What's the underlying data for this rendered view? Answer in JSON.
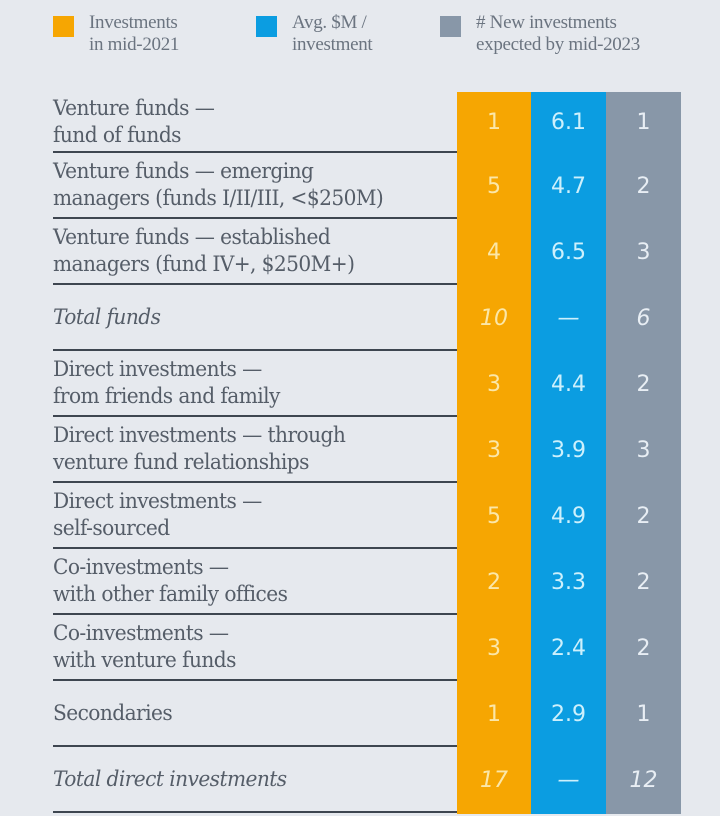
{
  "colors": {
    "investments_mid_2021": "#f6a602",
    "avg_m_per_investment": "#0b9de1",
    "new_investments_by_mid_2023": "#8897a8",
    "background": "#e6e9ee"
  },
  "legend": [
    {
      "label": "Investments\nin mid-2021",
      "color": "#f6a602"
    },
    {
      "label": "Avg. $M /\ninvestment",
      "color": "#0b9de1"
    },
    {
      "label": "# New investments\nexpected by mid-2023",
      "color": "#8897a8"
    }
  ],
  "rows": [
    {
      "label": "Venture funds —\nfund of funds",
      "total": false,
      "values": [
        "1",
        "6.1",
        "1"
      ]
    },
    {
      "label": "Venture funds — emerging\nmanagers (funds I/II/III, <$250M)",
      "total": false,
      "values": [
        "5",
        "4.7",
        "2"
      ]
    },
    {
      "label": "Venture funds — established\nmanagers (fund IV+, $250M+)",
      "total": false,
      "values": [
        "4",
        "6.5",
        "3"
      ]
    },
    {
      "label": "Total funds",
      "total": true,
      "values": [
        "10",
        "—",
        "6"
      ]
    },
    {
      "label": "Direct investments —\nfrom friends and family",
      "total": false,
      "values": [
        "3",
        "4.4",
        "2"
      ]
    },
    {
      "label": "Direct investments — through\nventure fund relationships",
      "total": false,
      "values": [
        "3",
        "3.9",
        "3"
      ]
    },
    {
      "label": "Direct investments —\nself-sourced",
      "total": false,
      "values": [
        "5",
        "4.9",
        "2"
      ]
    },
    {
      "label": "Co-investments —\nwith other family offices",
      "total": false,
      "values": [
        "2",
        "3.3",
        "2"
      ]
    },
    {
      "label": "Co-investments —\nwith venture funds",
      "total": false,
      "values": [
        "3",
        "2.4",
        "2"
      ]
    },
    {
      "label": "Secondaries",
      "total": false,
      "values": [
        "1",
        "2.9",
        "1"
      ]
    },
    {
      "label": "Total direct investments",
      "total": true,
      "values": [
        "17",
        "—",
        "12"
      ]
    }
  ],
  "chart_data": {
    "type": "table",
    "title": "",
    "columns": [
      "Investments in mid-2021",
      "Avg. $M / investment",
      "# New investments expected by mid-2023"
    ],
    "categories": [
      "Venture funds — fund of funds",
      "Venture funds — emerging managers (funds I/II/III, <$250M)",
      "Venture funds — established managers (fund IV+, $250M+)",
      "Total funds",
      "Direct investments — from friends and family",
      "Direct investments — through venture fund relationships",
      "Direct investments — self-sourced",
      "Co-investments — with other family offices",
      "Co-investments — with venture funds",
      "Secondaries",
      "Total direct investments"
    ],
    "series": [
      {
        "name": "Investments in mid-2021",
        "values": [
          1,
          5,
          4,
          10,
          3,
          3,
          5,
          2,
          3,
          1,
          17
        ]
      },
      {
        "name": "Avg. $M / investment",
        "values": [
          6.1,
          4.7,
          6.5,
          null,
          4.4,
          3.9,
          4.9,
          3.3,
          2.4,
          2.9,
          null
        ]
      },
      {
        "name": "# New investments expected by mid-2023",
        "values": [
          1,
          2,
          3,
          6,
          2,
          3,
          2,
          2,
          2,
          1,
          12
        ]
      }
    ],
    "legend_position": "top"
  }
}
